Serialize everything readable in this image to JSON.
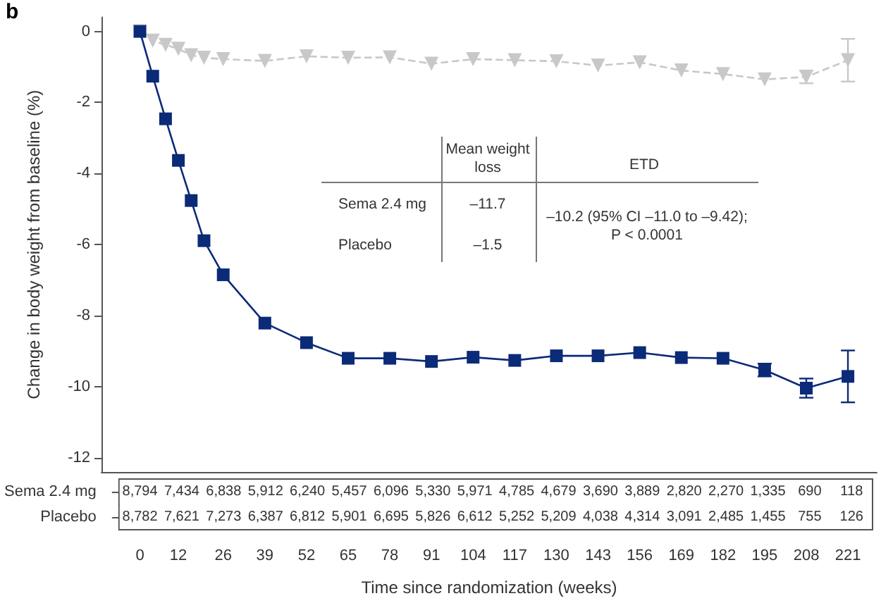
{
  "chart_data": [
    {
      "type": "line",
      "ylabel": "Change in body weight from baseline (%)",
      "xlabel": "Time since randomization (weeks)",
      "annotations": [
        "b",
        "Mean weight loss",
        "ETD",
        "Sema 2.4 mg",
        "Placebo",
        "–11.7",
        "–1.5",
        "–10.2 (95% CI –11.0 to –9.42); P < 0.0001"
      ],
      "x": [
        0,
        4,
        8,
        12,
        16,
        20,
        26,
        39,
        52,
        65,
        78,
        91,
        104,
        117,
        130,
        143,
        156,
        169,
        182,
        195,
        208,
        221
      ],
      "series": [
        {
          "color": "#c8c8c8",
          "marker": "triangle",
          "line_style": "dashed",
          "values": [
            0,
            -0.26,
            -0.38,
            -0.49,
            -0.67,
            -0.74,
            -0.78,
            -0.83,
            -0.7,
            -0.74,
            -0.73,
            -0.91,
            -0.78,
            -0.81,
            -0.84,
            -0.96,
            -0.87,
            -1.1,
            -1.2,
            -1.35,
            -1.28,
            -0.81
          ],
          "errors": [
            null,
            null,
            null,
            null,
            null,
            null,
            null,
            null,
            null,
            null,
            null,
            null,
            null,
            null,
            null,
            null,
            null,
            null,
            null,
            null,
            0.18,
            0.6
          ]
        },
        {
          "color": "#0b2a78",
          "marker": "square",
          "line_style": "solid",
          "values": [
            0,
            -1.26,
            -2.46,
            -3.63,
            -4.76,
            -5.89,
            -6.85,
            -8.21,
            -8.76,
            -9.2,
            -9.2,
            -9.29,
            -9.17,
            -9.26,
            -9.13,
            -9.13,
            -9.04,
            -9.18,
            -9.2,
            -9.53,
            -10.04,
            -9.71
          ],
          "errors": [
            null,
            null,
            null,
            null,
            null,
            null,
            null,
            null,
            null,
            null,
            null,
            null,
            null,
            null,
            null,
            null,
            null,
            null,
            null,
            0.18,
            0.27,
            0.73
          ]
        }
      ],
      "xlim": [
        -12,
        230
      ],
      "xticks": [
        0,
        12,
        26,
        39,
        52,
        65,
        78,
        91,
        104,
        117,
        130,
        143,
        156,
        169,
        182,
        195,
        208,
        221
      ],
      "ylim": [
        -12.4,
        0.4
      ],
      "yticks": [
        -12,
        -10,
        -8,
        -6,
        -4,
        -2,
        0
      ],
      "grid": false
    },
    {
      "type": "heatmap",
      "categories": [
        null,
        null,
        null,
        null,
        null,
        null,
        null,
        null,
        null,
        null,
        null,
        null,
        null,
        null,
        null,
        null,
        null,
        null
      ],
      "y_categories": [
        "Sema 2.4 mg",
        "Placebo"
      ],
      "cells": [
        [
          8794,
          7434,
          6838,
          5912,
          6240,
          5457,
          6096,
          5330,
          5971,
          4785,
          4679,
          3690,
          3889,
          2820,
          2270,
          1335,
          690,
          118
        ],
        [
          8782,
          7621,
          7273,
          6387,
          6812,
          5901,
          6695,
          5826,
          6612,
          5252,
          5209,
          4038,
          4314,
          3091,
          2485,
          1455,
          755,
          126
        ]
      ],
      "cell_labels": [
        [
          "8,794",
          "7,434",
          "6,838",
          "5,912",
          "6,240",
          "5,457",
          "6,096",
          "5,330",
          "5,971",
          "4,785",
          "4,679",
          "3,690",
          "3,889",
          "2,820",
          "2,270",
          "1,335",
          "690",
          "118"
        ],
        [
          "8,782",
          "7,621",
          "7,273",
          "6,387",
          "6,812",
          "5,901",
          "6,695",
          "5,826",
          "6,612",
          "5,252",
          "5,209",
          "4,038",
          "4,314",
          "3,091",
          "2,485",
          "1,455",
          "755",
          "126"
        ]
      ]
    }
  ]
}
